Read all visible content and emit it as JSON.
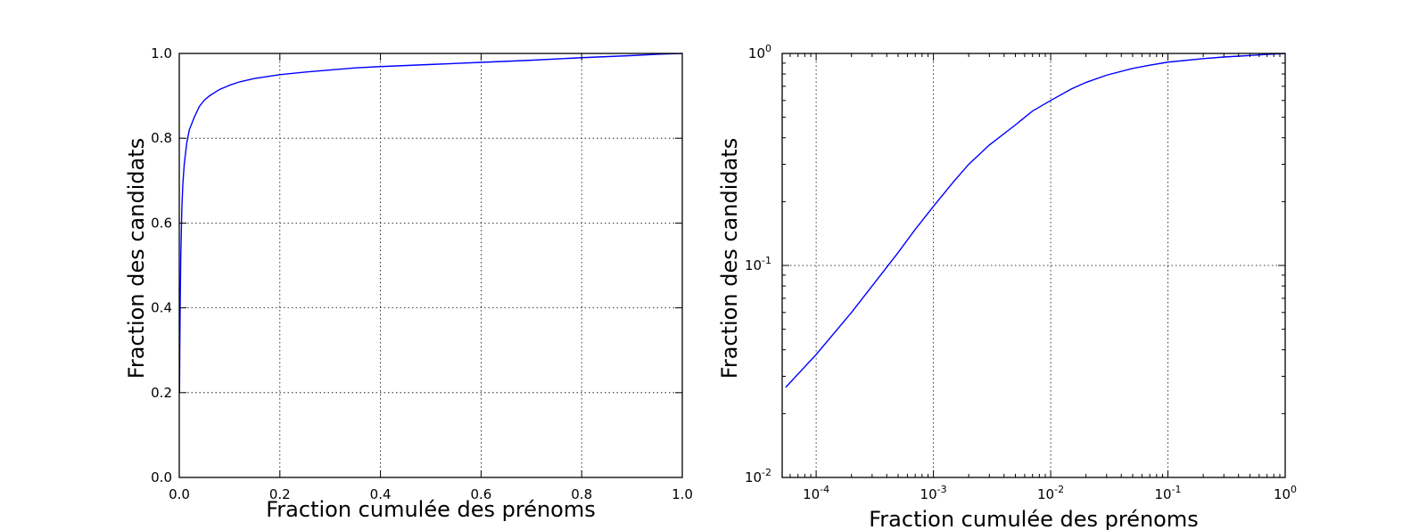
{
  "colors": {
    "series": "#0000ff",
    "axes": "#000000",
    "background": "#ffffff"
  },
  "chart_data": [
    {
      "type": "line",
      "title": "",
      "xlabel": "Fraction cumulée des prénoms",
      "ylabel": "Fraction des candidats",
      "xscale": "linear",
      "yscale": "linear",
      "xlim": [
        0,
        1
      ],
      "ylim": [
        0,
        1
      ],
      "grid": true,
      "legend": "none",
      "xticks": [
        0,
        0.2,
        0.4,
        0.6,
        0.8,
        1.0
      ],
      "xtick_labels": [
        "0.0",
        "0.2",
        "0.4",
        "0.6",
        "0.8",
        "1.0"
      ],
      "yticks": [
        0,
        0.2,
        0.4,
        0.6,
        0.8,
        1.0
      ],
      "ytick_labels": [
        "0.0",
        "0.2",
        "0.4",
        "0.6",
        "0.8",
        "1.0"
      ],
      "series": [
        {
          "x": [
            0,
            0.0005,
            0.001,
            0.002,
            0.003,
            0.005,
            0.007,
            0.01,
            0.015,
            0.02,
            0.03,
            0.04,
            0.05,
            0.06,
            0.08,
            0.1,
            0.12,
            0.15,
            0.2,
            0.25,
            0.3,
            0.35,
            0.4,
            0.5,
            0.6,
            0.7,
            0.8,
            0.9,
            0.95,
            1.0
          ],
          "y": [
            0.2,
            0.2,
            0.3,
            0.43,
            0.52,
            0.63,
            0.69,
            0.74,
            0.79,
            0.82,
            0.85,
            0.875,
            0.89,
            0.9,
            0.915,
            0.925,
            0.933,
            0.941,
            0.95,
            0.956,
            0.961,
            0.966,
            0.969,
            0.974,
            0.979,
            0.984,
            0.99,
            0.995,
            0.998,
            1.0
          ]
        }
      ]
    },
    {
      "type": "line",
      "title": "",
      "xlabel": "Fraction cumulée des prénoms",
      "ylabel": "Fraction des candidats",
      "xscale": "log",
      "yscale": "log",
      "xlim": [
        5.13e-05,
        1
      ],
      "ylim": [
        0.01,
        1
      ],
      "grid": true,
      "legend": "none",
      "xticks": [
        0.0001,
        0.001,
        0.01,
        0.1,
        1
      ],
      "xtick_labels": [
        [
          "10",
          "-4"
        ],
        [
          "10",
          "-3"
        ],
        [
          "10",
          "-2"
        ],
        [
          "10",
          "-1"
        ],
        [
          "10",
          "0"
        ]
      ],
      "yticks": [
        0.01,
        0.1,
        1
      ],
      "ytick_labels": [
        [
          "10",
          "-2"
        ],
        [
          "10",
          "-1"
        ],
        [
          "10",
          "0"
        ]
      ],
      "series": [
        {
          "x": [
            5.49e-05,
            0.0001,
            0.0002,
            0.0003,
            0.0005,
            0.0007,
            0.001,
            0.0015,
            0.002,
            0.003,
            0.005,
            0.007,
            0.01,
            0.015,
            0.02,
            0.03,
            0.05,
            0.07,
            0.1,
            0.2,
            0.3,
            0.5,
            0.7,
            1.0
          ],
          "y": [
            0.0266,
            0.038,
            0.06,
            0.08,
            0.115,
            0.148,
            0.19,
            0.25,
            0.3,
            0.37,
            0.46,
            0.535,
            0.6,
            0.68,
            0.73,
            0.79,
            0.85,
            0.88,
            0.91,
            0.945,
            0.962,
            0.978,
            0.99,
            1.0
          ]
        }
      ]
    }
  ]
}
